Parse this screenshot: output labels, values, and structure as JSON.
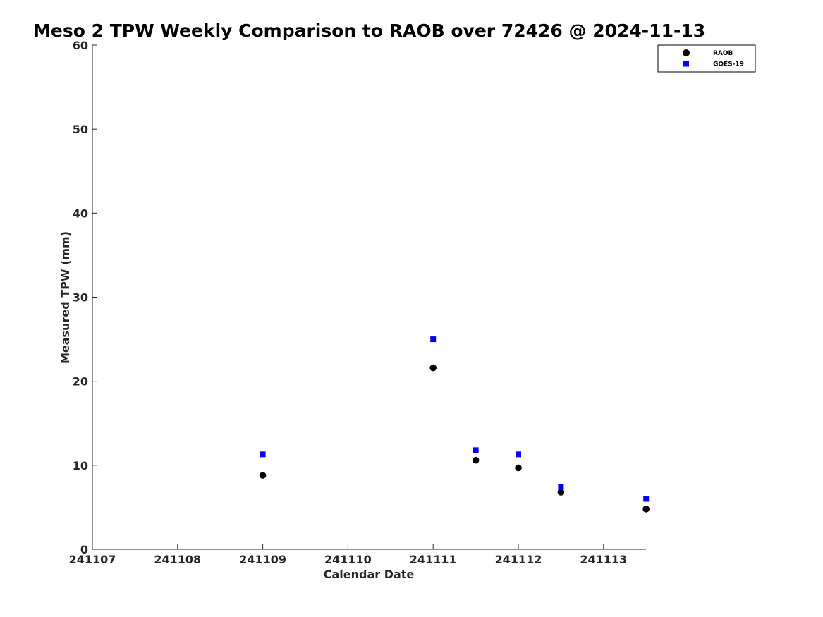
{
  "chart_data": {
    "type": "scatter",
    "title": "Meso 2 TPW Weekly Comparison to RAOB over 72426 @ 2024-11-13",
    "xlabel": "Calendar Date",
    "ylabel": "Measured TPW (mm)",
    "x_ticks": [
      "241107",
      "241108",
      "241109",
      "241110",
      "241111",
      "241112",
      "241113"
    ],
    "y_ticks": [
      0,
      10,
      20,
      30,
      40,
      50,
      60
    ],
    "ylim": [
      0,
      60
    ],
    "grid": false,
    "legend_position": "top-right",
    "series": [
      {
        "name": "RAOB",
        "marker": "circle",
        "color": "#000000",
        "points": [
          {
            "x": "2024-11-09 00Z",
            "y": 8.8
          },
          {
            "x": "2024-11-11 00Z",
            "y": 21.6
          },
          {
            "x": "2024-11-11 12Z",
            "y": 10.6
          },
          {
            "x": "2024-11-12 00Z",
            "y": 9.7
          },
          {
            "x": "2024-11-12 12Z",
            "y": 6.8
          },
          {
            "x": "2024-11-13 12Z",
            "y": 4.8
          }
        ]
      },
      {
        "name": "GOES-19",
        "marker": "square",
        "color": "#0000ff",
        "points": [
          {
            "x": "2024-11-09 00Z",
            "y": 11.3
          },
          {
            "x": "2024-11-11 00Z",
            "y": 25.0
          },
          {
            "x": "2024-11-11 12Z",
            "y": 11.8
          },
          {
            "x": "2024-11-12 00Z",
            "y": 11.3
          },
          {
            "x": "2024-11-12 12Z",
            "y": 7.4
          },
          {
            "x": "2024-11-13 12Z",
            "y": 6.0
          }
        ]
      }
    ]
  }
}
